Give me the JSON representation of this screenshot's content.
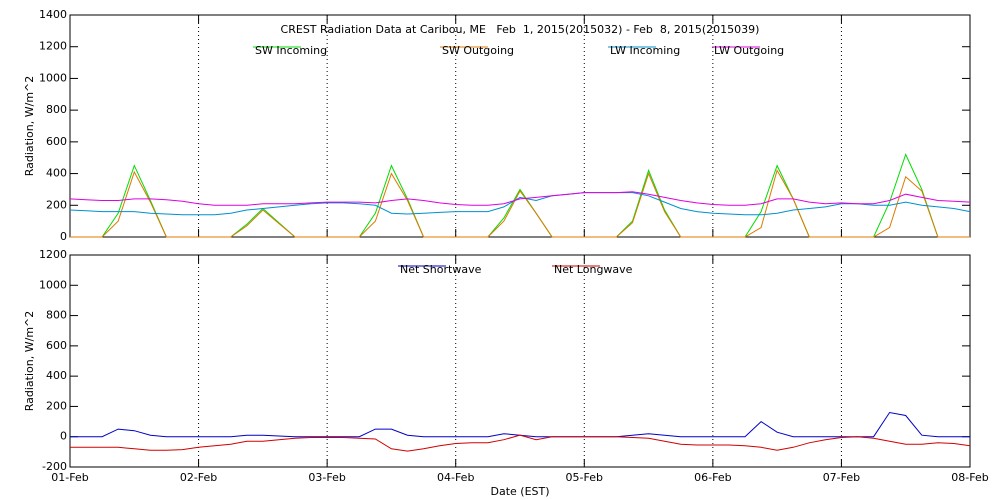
{
  "chart_data": [
    {
      "type": "line",
      "title": "CREST Radiation Data at Caribou, ME   Feb  1, 2015(2015032) - Feb  8, 2015(2015039)",
      "y_label": "Radiation, W/m^2",
      "x": [
        0,
        3,
        6,
        9,
        12,
        15,
        18,
        21,
        24,
        27,
        30,
        33,
        36,
        39,
        42,
        45,
        48,
        51,
        54,
        57,
        60,
        63,
        66,
        69,
        72,
        75,
        78,
        81,
        84,
        87,
        90,
        93,
        96,
        99,
        102,
        105,
        108,
        111,
        114,
        117,
        120,
        123,
        126,
        129,
        132,
        135,
        138,
        141,
        144,
        147,
        150,
        153,
        156,
        159,
        162,
        165,
        168
      ],
      "xlim": [
        0,
        168
      ],
      "xticks": [
        0,
        24,
        48,
        72,
        96,
        120,
        144,
        168
      ],
      "ylim": [
        0,
        1400
      ],
      "yticks": [
        0,
        200,
        400,
        600,
        800,
        1000,
        1200,
        1400
      ],
      "grid": true,
      "series": [
        {
          "name": "SW Incoming",
          "color": "#00dd00",
          "values": [
            0,
            0,
            0,
            150,
            450,
            230,
            0,
            0,
            0,
            0,
            0,
            80,
            180,
            90,
            0,
            0,
            0,
            0,
            0,
            150,
            450,
            240,
            0,
            0,
            0,
            0,
            0,
            120,
            300,
            150,
            0,
            0,
            0,
            0,
            0,
            100,
            420,
            170,
            0,
            0,
            0,
            0,
            0,
            160,
            450,
            240,
            0,
            0,
            0,
            0,
            0,
            220,
            520,
            300,
            0,
            0,
            0
          ]
        },
        {
          "name": "SW Outgoing",
          "color": "#e07800",
          "values": [
            0,
            0,
            0,
            100,
            410,
            220,
            0,
            0,
            0,
            0,
            0,
            70,
            170,
            85,
            0,
            0,
            0,
            0,
            0,
            100,
            400,
            230,
            0,
            0,
            0,
            0,
            0,
            100,
            290,
            150,
            0,
            0,
            0,
            0,
            0,
            90,
            400,
            160,
            0,
            0,
            0,
            0,
            0,
            60,
            420,
            240,
            0,
            0,
            0,
            0,
            0,
            60,
            380,
            290,
            0,
            0,
            0
          ]
        },
        {
          "name": "LW Incoming",
          "color": "#0090d0",
          "values": [
            170,
            165,
            160,
            160,
            160,
            150,
            145,
            140,
            140,
            140,
            150,
            170,
            180,
            190,
            200,
            210,
            215,
            215,
            210,
            200,
            150,
            145,
            150,
            155,
            160,
            160,
            160,
            190,
            250,
            230,
            260,
            270,
            280,
            280,
            280,
            280,
            260,
            220,
            180,
            160,
            150,
            145,
            140,
            140,
            150,
            170,
            180,
            190,
            210,
            210,
            200,
            200,
            220,
            200,
            190,
            180,
            160
          ]
        },
        {
          "name": "LW Outgoing",
          "color": "#e000e0",
          "values": [
            240,
            235,
            230,
            230,
            240,
            240,
            235,
            225,
            210,
            200,
            200,
            200,
            210,
            210,
            210,
            215,
            220,
            220,
            220,
            215,
            230,
            240,
            230,
            215,
            205,
            200,
            200,
            210,
            240,
            250,
            260,
            270,
            280,
            280,
            280,
            285,
            270,
            250,
            230,
            215,
            205,
            200,
            200,
            210,
            240,
            240,
            220,
            210,
            215,
            210,
            210,
            230,
            270,
            250,
            230,
            225,
            220
          ]
        }
      ]
    },
    {
      "type": "line",
      "y_label": "Radiation, W/m^2",
      "x_label": "Date (EST)",
      "x": [
        0,
        3,
        6,
        9,
        12,
        15,
        18,
        21,
        24,
        27,
        30,
        33,
        36,
        39,
        42,
        45,
        48,
        51,
        54,
        57,
        60,
        63,
        66,
        69,
        72,
        75,
        78,
        81,
        84,
        87,
        90,
        93,
        96,
        99,
        102,
        105,
        108,
        111,
        114,
        117,
        120,
        123,
        126,
        129,
        132,
        135,
        138,
        141,
        144,
        147,
        150,
        153,
        156,
        159,
        162,
        165,
        168
      ],
      "xlim": [
        0,
        168
      ],
      "xticks": [
        {
          "value": 0,
          "label": "01-Feb"
        },
        {
          "value": 24,
          "label": "02-Feb"
        },
        {
          "value": 48,
          "label": "03-Feb"
        },
        {
          "value": 72,
          "label": "04-Feb"
        },
        {
          "value": 96,
          "label": "05-Feb"
        },
        {
          "value": 120,
          "label": "06-Feb"
        },
        {
          "value": 144,
          "label": "07-Feb"
        },
        {
          "value": 168,
          "label": "08-Feb"
        }
      ],
      "ylim": [
        -200,
        1200
      ],
      "yticks": [
        -200,
        0,
        200,
        400,
        600,
        800,
        1000,
        1200
      ],
      "grid": true,
      "series": [
        {
          "name": "Net Shortwave",
          "color": "#0000c8",
          "values": [
            0,
            0,
            0,
            50,
            40,
            10,
            0,
            0,
            0,
            0,
            0,
            10,
            10,
            5,
            0,
            0,
            0,
            0,
            0,
            50,
            50,
            10,
            0,
            0,
            0,
            0,
            0,
            20,
            10,
            0,
            0,
            0,
            0,
            0,
            0,
            10,
            20,
            10,
            0,
            0,
            0,
            0,
            0,
            100,
            30,
            0,
            0,
            0,
            0,
            0,
            0,
            160,
            140,
            10,
            0,
            0,
            0
          ]
        },
        {
          "name": "Net Longwave",
          "color": "#d00000",
          "values": [
            -70,
            -70,
            -70,
            -70,
            -80,
            -90,
            -90,
            -85,
            -70,
            -60,
            -50,
            -30,
            -30,
            -20,
            -10,
            -5,
            -5,
            -5,
            -10,
            -15,
            -80,
            -95,
            -80,
            -60,
            -45,
            -40,
            -40,
            -20,
            10,
            -20,
            0,
            0,
            0,
            0,
            0,
            -5,
            -10,
            -30,
            -50,
            -55,
            -55,
            -55,
            -60,
            -70,
            -90,
            -70,
            -40,
            -20,
            -5,
            0,
            -10,
            -30,
            -50,
            -50,
            -40,
            -45,
            -60
          ]
        }
      ]
    }
  ]
}
